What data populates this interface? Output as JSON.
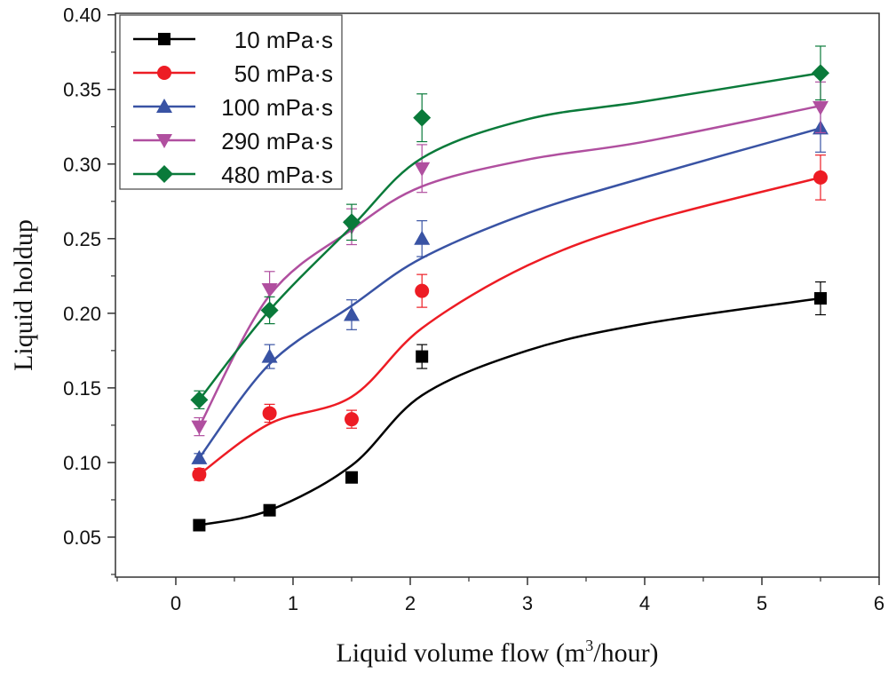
{
  "chart_data": {
    "type": "line",
    "title": "",
    "xlabel": "Liquid volume flow (m³/hour)",
    "xlabel_parts": {
      "pre": "Liquid volume flow (m",
      "sup": "3",
      "post": "/hour)"
    },
    "ylabel": "Liquid holdup",
    "xlim": [
      -0.515,
      6.0
    ],
    "ylim": [
      0.0232,
      0.401
    ],
    "xticks": [
      0,
      1,
      2,
      3,
      4,
      5,
      6
    ],
    "xtick_labels": [
      "0",
      "1",
      "2",
      "3",
      "4",
      "5",
      "6"
    ],
    "yticks": [
      0.05,
      0.1,
      0.15,
      0.2,
      0.25,
      0.3,
      0.35,
      0.4
    ],
    "ytick_labels": [
      "0.05",
      "0.10",
      "0.15",
      "0.20",
      "0.25",
      "0.30",
      "0.35",
      "0.40"
    ],
    "grid": false,
    "legend_position": "top-left",
    "x": [
      0.2,
      0.8,
      1.5,
      2.1,
      5.5
    ],
    "fit_x": [
      0.2,
      0.8,
      1.5,
      2.1,
      3,
      4,
      5.5
    ],
    "series": [
      {
        "name": "10 mPa·s",
        "color": "#000000",
        "marker": "square",
        "values": [
          0.058,
          0.068,
          0.09,
          0.171,
          0.21
        ],
        "errors": [
          0.002,
          0.002,
          0.002,
          0.008,
          0.011
        ],
        "fit": [
          0.058,
          0.068,
          0.098,
          0.145,
          0.175,
          0.193,
          0.21
        ]
      },
      {
        "name": "50 mPa·s",
        "color": "#ed1c24",
        "marker": "circle",
        "values": [
          0.092,
          0.133,
          0.129,
          0.215,
          0.291
        ],
        "errors": [
          0.004,
          0.006,
          0.006,
          0.011,
          0.015
        ],
        "fit": [
          0.092,
          0.126,
          0.144,
          0.19,
          0.232,
          0.261,
          0.291
        ]
      },
      {
        "name": "100 mPa·s",
        "color": "#3953a4",
        "marker": "triangle-up",
        "values": [
          0.103,
          0.171,
          0.199,
          0.25,
          0.324
        ],
        "errors": [
          0.003,
          0.008,
          0.01,
          0.012,
          0.016
        ],
        "fit": [
          0.103,
          0.166,
          0.205,
          0.237,
          0.267,
          0.291,
          0.324
        ]
      },
      {
        "name": "290 mPa·s",
        "color": "#b04f9f",
        "marker": "triangle-down",
        "values": [
          0.124,
          0.216,
          0.258,
          0.297,
          0.338
        ],
        "errors": [
          0.006,
          0.012,
          0.012,
          0.016,
          0.017
        ],
        "fit": [
          0.124,
          0.212,
          0.256,
          0.285,
          0.303,
          0.315,
          0.339
        ]
      },
      {
        "name": "480 mPa·s",
        "color": "#0a7a3a",
        "marker": "diamond",
        "values": [
          0.142,
          0.202,
          0.261,
          0.331,
          0.361
        ],
        "errors": [
          0.006,
          0.009,
          0.012,
          0.016,
          0.018
        ],
        "fit": [
          0.142,
          0.202,
          0.258,
          0.304,
          0.33,
          0.342,
          0.361
        ]
      }
    ]
  }
}
